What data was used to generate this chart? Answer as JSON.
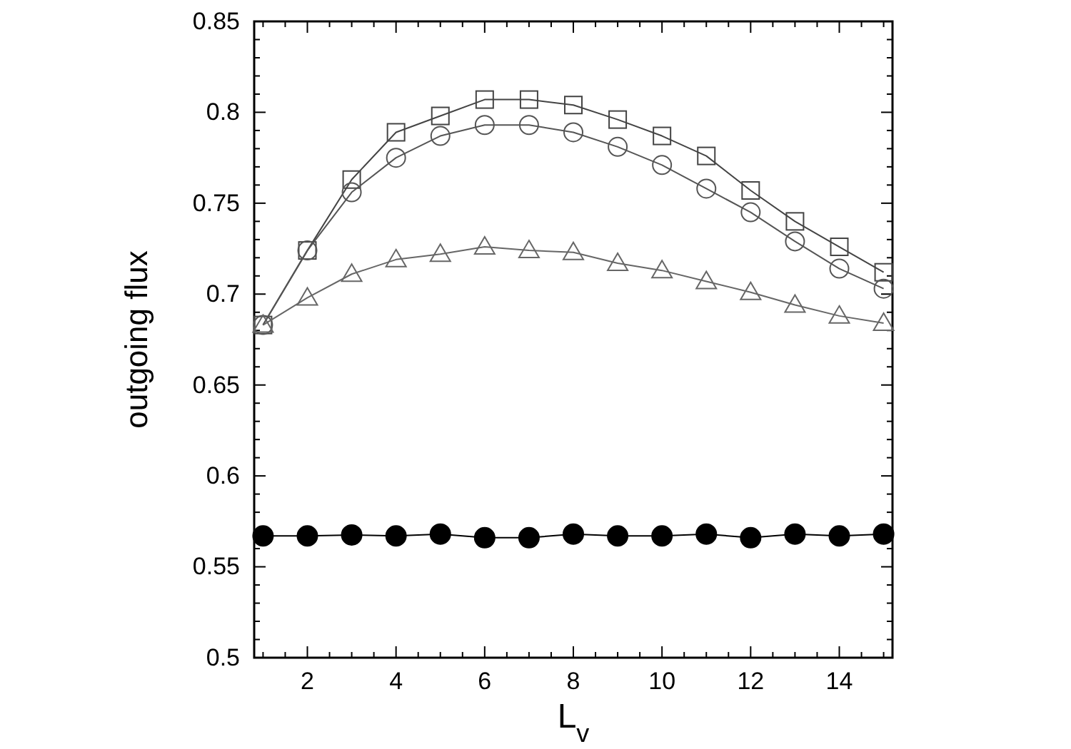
{
  "chart_data": {
    "type": "line",
    "xlabel": "L$_{v}$",
    "ylabel": "outgoing flux",
    "x": [
      1,
      2,
      3,
      4,
      5,
      6,
      7,
      8,
      9,
      10,
      11,
      12,
      13,
      14,
      15
    ],
    "xlim": [
      0.8,
      15.2
    ],
    "ylim": [
      0.5,
      0.85
    ],
    "xticks": [
      {
        "value": 1,
        "label": null
      },
      {
        "value": 1.5,
        "label": null
      },
      2,
      {
        "value": 2.5,
        "label": null
      },
      {
        "value": 3,
        "label": null
      },
      {
        "value": 3.5,
        "label": null
      },
      4,
      {
        "value": 4.5,
        "label": null
      },
      {
        "value": 5,
        "label": null
      },
      {
        "value": 5.5,
        "label": null
      },
      6,
      {
        "value": 6.5,
        "label": null
      },
      {
        "value": 7,
        "label": null
      },
      {
        "value": 7.5,
        "label": null
      },
      8,
      {
        "value": 8.5,
        "label": null
      },
      {
        "value": 9,
        "label": null
      },
      {
        "value": 9.5,
        "label": null
      },
      10,
      {
        "value": 10.5,
        "label": null
      },
      {
        "value": 11,
        "label": null
      },
      {
        "value": 11.5,
        "label": null
      },
      12,
      {
        "value": 12.5,
        "label": null
      },
      {
        "value": 13,
        "label": null
      },
      {
        "value": 13.5,
        "label": null
      },
      14,
      {
        "value": 14.5,
        "label": null
      },
      {
        "value": 15,
        "label": null
      }
    ],
    "yticks": [
      0.5,
      {
        "value": 0.51,
        "label": null
      },
      {
        "value": 0.52,
        "label": null
      },
      {
        "value": 0.53,
        "label": null
      },
      {
        "value": 0.54,
        "label": null
      },
      0.55,
      {
        "value": 0.56,
        "label": null
      },
      {
        "value": 0.57,
        "label": null
      },
      {
        "value": 0.58,
        "label": null
      },
      {
        "value": 0.59,
        "label": null
      },
      0.6,
      {
        "value": 0.61,
        "label": null
      },
      {
        "value": 0.62,
        "label": null
      },
      {
        "value": 0.63,
        "label": null
      },
      {
        "value": 0.64,
        "label": null
      },
      0.65,
      {
        "value": 0.66,
        "label": null
      },
      {
        "value": 0.67,
        "label": null
      },
      {
        "value": 0.68,
        "label": null
      },
      {
        "value": 0.69,
        "label": null
      },
      0.7,
      {
        "value": 0.71,
        "label": null
      },
      {
        "value": 0.72,
        "label": null
      },
      {
        "value": 0.73,
        "label": null
      },
      {
        "value": 0.74,
        "label": null
      },
      0.75,
      {
        "value": 0.76,
        "label": null
      },
      {
        "value": 0.77,
        "label": null
      },
      {
        "value": 0.78,
        "label": null
      },
      {
        "value": 0.79,
        "label": null
      },
      0.8,
      {
        "value": 0.81,
        "label": null
      },
      {
        "value": 0.82,
        "label": null
      },
      {
        "value": 0.83,
        "label": null
      },
      {
        "value": 0.84,
        "label": null
      },
      0.85
    ],
    "grid": false,
    "line_style": "solid",
    "series": [
      {
        "color": "#444444",
        "marker": "square",
        "values": [
          0.683,
          0.724,
          0.763,
          0.789,
          0.798,
          0.807,
          0.807,
          0.804,
          0.796,
          0.787,
          0.776,
          0.757,
          0.74,
          0.726,
          0.712
        ]
      },
      {
        "color": "#555555",
        "marker": "circle",
        "values": [
          0.683,
          0.724,
          0.756,
          0.775,
          0.787,
          0.793,
          0.793,
          0.789,
          0.781,
          0.771,
          0.758,
          0.745,
          0.729,
          0.714,
          0.703
        ]
      },
      {
        "color": "#666666",
        "marker": "triangle",
        "values": [
          0.683,
          0.698,
          0.711,
          0.719,
          0.722,
          0.726,
          0.724,
          0.723,
          0.717,
          0.713,
          0.707,
          0.701,
          0.694,
          0.688,
          0.684
        ]
      },
      {
        "color": "#000000",
        "marker": "circle",
        "values": [
          0.567,
          0.567,
          0.5675,
          0.567,
          0.568,
          0.566,
          0.566,
          0.568,
          0.567,
          0.567,
          0.568,
          0.566,
          0.568,
          0.567,
          0.568
        ]
      }
    ]
  }
}
